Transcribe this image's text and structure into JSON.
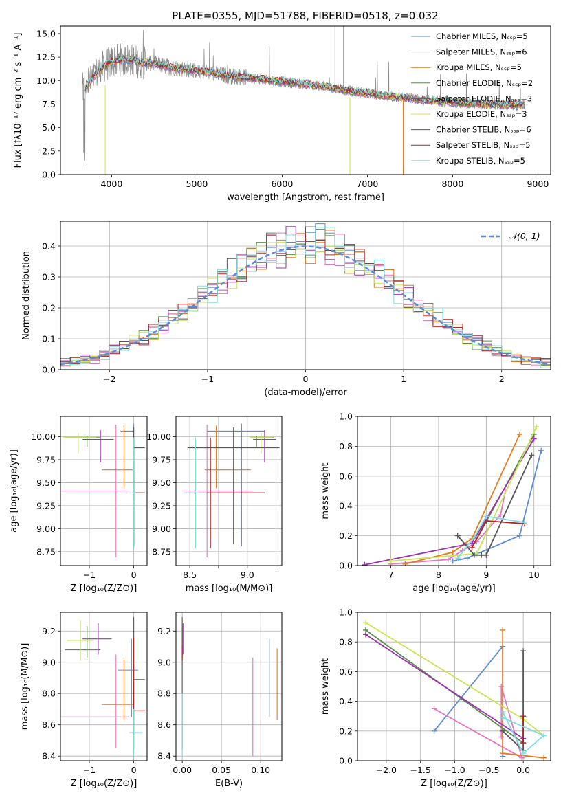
{
  "figure_title": "PLATE=0355, MJD=51788, FIBERID=0518, z=0.032",
  "colors": {
    "chabrier_miles": "#5b8bd6",
    "salpeter_miles": "#e377c2",
    "kroupa_miles": "#e6781e",
    "chabrier_elodie": "#5a8a4a",
    "salpeter_elodie": "#9b30b0",
    "kroupa_elodie": "#c8e64c",
    "chabrier_stelib": "#555555",
    "salpeter_stelib": "#b22222",
    "kroupa_stelib": "#7fdde0",
    "data_gray": "#888888",
    "normal_curve": "#5b8bd6",
    "grid": "#b0b0b0"
  },
  "chart_data": [
    {
      "id": "spectrum",
      "type": "line",
      "title": "PLATE=0355, MJD=51788, FIBERID=0518, z=0.032",
      "xlabel": "wavelength [Angstrom, rest frame]",
      "ylabel": "Flux [fλ10⁻¹⁷ erg cm⁻² s⁻¹ A⁻¹]",
      "xlim": [
        3400,
        9150
      ],
      "ylim": [
        0,
        15.8
      ],
      "xticks": [
        4000,
        5000,
        6000,
        7000,
        8000,
        9000
      ],
      "xtick_labels": [
        "4000",
        "5000",
        "6000",
        "7000",
        "8000",
        "9000"
      ],
      "yticks": [
        0.0,
        2.5,
        5.0,
        7.5,
        10.0,
        12.5,
        15.0
      ],
      "ytick_labels": [
        "0.0",
        "2.5",
        "5.0",
        "7.5",
        "10.0",
        "12.5",
        "15.0"
      ],
      "grid": false,
      "legend_position": "top-right",
      "legend": [
        "Chabrier MILES, Nₛₛₚ=5",
        "Salpeter MILES, Nₛₛₚ=6",
        "Kroupa MILES, Nₛₛₚ=5",
        "Chabrier ELODIE, Nₛₛₚ=2",
        "Salpeter ELODIE, Nₛₛₚ=3",
        "Kroupa ELODIE, Nₛₛₚ=3",
        "Chabrier STELIB, Nₛₛₚ=6",
        "Salpeter STELIB, Nₛₛₚ=5",
        "Kroupa STELIB, Nₛₛₚ=5"
      ],
      "continuum": {
        "x": [
          3650,
          3700,
          3800,
          3900,
          4000,
          4100,
          4200,
          4300,
          4500,
          4700,
          5000,
          5300,
          5600,
          6000,
          6400,
          6800,
          7200,
          7600,
          8000,
          8400,
          8800
        ],
        "y": [
          9.0,
          9.3,
          10.5,
          11.5,
          12.0,
          12.2,
          12.3,
          12.0,
          11.8,
          11.4,
          11.1,
          10.6,
          10.3,
          9.9,
          9.5,
          8.9,
          8.4,
          8.0,
          7.7,
          7.5,
          7.4
        ]
      }
    },
    {
      "id": "residuals",
      "type": "histogram",
      "xlabel": "(data-model)/error",
      "ylabel": "Normed distribution",
      "xlim": [
        -2.5,
        2.5
      ],
      "ylim": [
        0,
        0.48
      ],
      "xticks": [
        -2,
        -1,
        0,
        1,
        2
      ],
      "xtick_labels": [
        "−2",
        "−1",
        "0",
        "1",
        "2"
      ],
      "yticks": [
        0.0,
        0.1,
        0.2,
        0.3,
        0.4
      ],
      "ytick_labels": [
        "0.0",
        "0.1",
        "0.2",
        "0.3",
        "0.4"
      ],
      "grid": true,
      "legend_position": "top-right",
      "legend": [
        "𝒩(0, 1)"
      ],
      "bin_width": 0.1
    },
    {
      "id": "z_age",
      "type": "scatter",
      "xlabel": "Z [log₁₀(Z/Z⊙)]",
      "ylabel": "age  [log₁₀(age/yr)]",
      "xlim": [
        -1.65,
        0.3
      ],
      "ylim": [
        8.6,
        10.22
      ],
      "xticks": [
        -1,
        0
      ],
      "xtick_labels": [
        "−1",
        "0"
      ],
      "yticks": [
        8.75,
        9.0,
        9.25,
        9.5,
        9.75,
        10.0
      ],
      "ytick_labels": [
        "8.75",
        "9.00",
        "9.25",
        "9.50",
        "9.75",
        "10.00"
      ],
      "grid": true,
      "points": [
        {
          "c": "chabrier_miles",
          "x": 0.0,
          "xerr": [
            0.3,
            0.0
          ],
          "y": 10.06,
          "yerr": [
            1.25,
            0.08
          ]
        },
        {
          "c": "salpeter_miles",
          "x": -0.4,
          "xerr": [
            1.4,
            0.3
          ],
          "y": 9.41,
          "yerr": [
            0.72,
            0.72
          ]
        },
        {
          "c": "kroupa_miles",
          "x": -0.22,
          "xerr": [
            0.5,
            0.2
          ],
          "y": 9.64,
          "yerr": [
            0.2,
            0.48
          ]
        },
        {
          "c": "chabrier_elodie",
          "x": -1.05,
          "xerr": [
            0.5,
            0.3
          ],
          "y": 9.99,
          "yerr": [
            0.1,
            0.02
          ]
        },
        {
          "c": "salpeter_elodie",
          "x": -0.75,
          "xerr": [
            0.4,
            0.3
          ],
          "y": 9.97,
          "yerr": [
            0.25,
            0.1
          ]
        },
        {
          "c": "kroupa_elodie",
          "x": -1.25,
          "xerr": [
            0.35,
            0.4
          ],
          "y": 9.99,
          "yerr": [
            0.17,
            0.05
          ]
        },
        {
          "c": "chabrier_stelib",
          "x": 0.0,
          "xerr": [
            0.0,
            0.25
          ],
          "y": 9.88,
          "yerr": [
            1.05,
            0.22
          ]
        },
        {
          "c": "salpeter_stelib",
          "x": 0.0,
          "xerr": [
            0.0,
            0.25
          ],
          "y": 9.39,
          "yerr": [
            0.6,
            0.6
          ]
        },
        {
          "c": "kroupa_stelib",
          "x": 0.0,
          "xerr": [
            0.05,
            0.05
          ],
          "y": 9.39,
          "yerr": [
            0.6,
            0.6
          ]
        }
      ]
    },
    {
      "id": "mass_age",
      "type": "scatter",
      "xlabel": "mass [log₁₀(M/M⊙)]",
      "ylabel": "",
      "xlim": [
        8.38,
        9.3
      ],
      "ylim": [
        8.6,
        10.22
      ],
      "xticks": [
        8.5,
        8.75,
        9.0,
        9.25
      ],
      "xtick_labels": [
        "8.5",
        "",
        "9.0",
        ""
      ],
      "yticks": [
        8.75,
        9.0,
        9.25,
        9.5,
        9.75,
        10.0
      ],
      "ytick_labels": [
        "8.75",
        "9.00",
        "9.25",
        "9.50",
        "9.75",
        "10.00"
      ],
      "grid": true,
      "points": [
        {
          "c": "chabrier_miles",
          "x": 8.95,
          "xerr": [
            0.3,
            0.2
          ],
          "y": 10.06,
          "yerr": [
            1.25,
            0.08
          ]
        },
        {
          "c": "salpeter_miles",
          "x": 8.65,
          "xerr": [
            0.2,
            0.4
          ],
          "y": 9.41,
          "yerr": [
            0.72,
            0.72
          ]
        },
        {
          "c": "kroupa_miles",
          "x": 8.73,
          "xerr": [
            0.1,
            0.3
          ],
          "y": 9.64,
          "yerr": [
            0.2,
            0.48
          ]
        },
        {
          "c": "chabrier_elodie",
          "x": 9.08,
          "xerr": [
            0.05,
            0.15
          ],
          "y": 9.99,
          "yerr": [
            0.1,
            0.02
          ]
        },
        {
          "c": "salpeter_elodie",
          "x": 9.15,
          "xerr": [
            0.1,
            0.1
          ],
          "y": 9.97,
          "yerr": [
            0.25,
            0.1
          ]
        },
        {
          "c": "kroupa_elodie",
          "x": 9.12,
          "xerr": [
            0.1,
            0.1
          ],
          "y": 9.99,
          "yerr": [
            0.17,
            0.05
          ]
        },
        {
          "c": "chabrier_stelib",
          "x": 8.88,
          "xerr": [
            0.4,
            0.4
          ],
          "y": 9.88,
          "yerr": [
            1.05,
            0.22
          ]
        },
        {
          "c": "salpeter_stelib",
          "x": 8.68,
          "xerr": [
            0.1,
            0.47
          ],
          "y": 9.39,
          "yerr": [
            0.6,
            0.6
          ]
        },
        {
          "c": "kroupa_stelib",
          "x": 8.55,
          "xerr": [
            0.1,
            0.1
          ],
          "y": 9.39,
          "yerr": [
            0.6,
            0.6
          ]
        }
      ]
    },
    {
      "id": "age_weight",
      "type": "line",
      "xlabel": "age  [log₁₀(age/yr)]",
      "ylabel": "mass weight",
      "xlim": [
        6.3,
        10.35
      ],
      "ylim": [
        0.0,
        1.0
      ],
      "xticks": [
        7,
        8,
        9,
        10
      ],
      "xtick_labels": [
        "7",
        "8",
        "9",
        "10"
      ],
      "yticks": [
        0.0,
        0.2,
        0.4,
        0.6,
        0.8,
        1.0
      ],
      "ytick_labels": [
        "0.0",
        "0.2",
        "0.4",
        "0.6",
        "0.8",
        "1.0"
      ],
      "grid": true,
      "series": [
        {
          "c": "chabrier_miles",
          "x": [
            8.3,
            8.6,
            9.7,
            10.15,
            10.15
          ],
          "y": [
            0.03,
            0.05,
            0.2,
            0.77,
            0.77
          ]
        },
        {
          "c": "salpeter_miles",
          "x": [
            7.0,
            8.2,
            8.5,
            8.8,
            9.3,
            9.4
          ],
          "y": [
            0.01,
            0.04,
            0.1,
            0.16,
            0.34,
            0.5
          ]
        },
        {
          "c": "kroupa_miles",
          "x": [
            7.3,
            8.3,
            8.7,
            9.7
          ],
          "y": [
            0.01,
            0.09,
            0.18,
            0.88
          ]
        },
        {
          "c": "chabrier_elodie",
          "x": [
            8.7,
            10.0
          ],
          "y": [
            0.12,
            0.88
          ]
        },
        {
          "c": "salpeter_elodie",
          "x": [
            6.45,
            8.7,
            10.0
          ],
          "y": [
            0.005,
            0.15,
            0.85
          ]
        },
        {
          "c": "kroupa_elodie",
          "x": [
            7.0,
            8.8,
            10.05
          ],
          "y": [
            0.03,
            0.08,
            0.93
          ]
        },
        {
          "c": "chabrier_stelib",
          "x": [
            8.4,
            8.75,
            8.9,
            9.0,
            9.95
          ],
          "y": [
            0.2,
            0.07,
            0.07,
            0.07,
            0.74
          ]
        },
        {
          "c": "salpeter_stelib",
          "x": [
            8.7,
            9.0,
            9.8
          ],
          "y": [
            0.12,
            0.3,
            0.28
          ]
        },
        {
          "c": "kroupa_stelib",
          "x": [
            8.4,
            8.75,
            9.0,
            9.8
          ],
          "y": [
            0.05,
            0.19,
            0.33,
            0.29
          ]
        }
      ]
    },
    {
      "id": "z_mass",
      "type": "scatter",
      "xlabel": "Z [log₁₀(Z/Z⊙)]",
      "ylabel": "mass [log₁₀(M/M⊙)]",
      "xlim": [
        -1.65,
        0.3
      ],
      "ylim": [
        8.37,
        9.32
      ],
      "xticks": [
        -1,
        0
      ],
      "xtick_labels": [
        "−1",
        "0"
      ],
      "yticks": [
        8.4,
        8.6,
        8.8,
        9.0,
        9.2
      ],
      "ytick_labels": [
        "8.4",
        "8.6",
        "8.8",
        "9.0",
        "9.2"
      ],
      "grid": true,
      "points": [
        {
          "c": "chabrier_miles",
          "x": -0.05,
          "xerr": [
            0.3,
            0.15
          ],
          "y": 8.95,
          "yerr": [
            0.3,
            0.2
          ]
        },
        {
          "c": "salpeter_miles",
          "x": -0.4,
          "xerr": [
            1.4,
            0.3
          ],
          "y": 8.65,
          "yerr": [
            0.2,
            0.4
          ]
        },
        {
          "c": "kroupa_miles",
          "x": -0.22,
          "xerr": [
            0.5,
            0.2
          ],
          "y": 8.73,
          "yerr": [
            0.1,
            0.3
          ]
        },
        {
          "c": "chabrier_elodie",
          "x": -1.05,
          "xerr": [
            0.5,
            0.3
          ],
          "y": 9.08,
          "yerr": [
            0.05,
            0.15
          ]
        },
        {
          "c": "salpeter_elodie",
          "x": -0.8,
          "xerr": [
            0.35,
            0.3
          ],
          "y": 9.15,
          "yerr": [
            0.1,
            0.1
          ]
        },
        {
          "c": "kroupa_elodie",
          "x": -1.2,
          "xerr": [
            0.3,
            0.3
          ],
          "y": 9.14,
          "yerr": [
            0.13,
            0.13
          ]
        },
        {
          "c": "chabrier_stelib",
          "x": 0.0,
          "xerr": [
            0.0,
            0.25
          ],
          "y": 8.89,
          "yerr": [
            0.45,
            0.4
          ]
        },
        {
          "c": "salpeter_stelib",
          "x": 0.0,
          "xerr": [
            0.0,
            0.25
          ],
          "y": 8.69,
          "yerr": [
            0.1,
            0.47
          ]
        },
        {
          "c": "kroupa_stelib",
          "x": 0.0,
          "xerr": [
            0.1,
            0.2
          ],
          "y": 8.55,
          "yerr": [
            0.15,
            0.15
          ]
        }
      ]
    },
    {
      "id": "ebv_mass",
      "type": "scatter",
      "xlabel": "E(B-V)",
      "ylabel": "",
      "xlim": [
        -0.008,
        0.127
      ],
      "ylim": [
        8.37,
        9.32
      ],
      "xticks": [
        0.0,
        0.05,
        0.1
      ],
      "xtick_labels": [
        "0.00",
        "0.05",
        "0.10"
      ],
      "yticks": [
        8.4,
        8.6,
        8.8,
        9.0,
        9.2
      ],
      "ytick_labels": [
        "8.4",
        "8.6",
        "8.8",
        "9.0",
        "9.2"
      ],
      "grid": true,
      "points": [
        {
          "c": "chabrier_miles",
          "x": 0.111,
          "xerr": [
            0,
            0
          ],
          "y": 8.95,
          "yerr": [
            0.3,
            0.2
          ]
        },
        {
          "c": "salpeter_miles",
          "x": 0.09,
          "xerr": [
            0,
            0
          ],
          "y": 8.65,
          "yerr": [
            0.25,
            0.38
          ]
        },
        {
          "c": "kroupa_miles",
          "x": 0.121,
          "xerr": [
            0,
            0
          ],
          "y": 8.83,
          "yerr": [
            0.2,
            0.26
          ]
        },
        {
          "c": "chabrier_elodie",
          "x": 0.0,
          "xerr": [
            0,
            0
          ],
          "y": 9.08,
          "yerr": [
            0.05,
            0.15
          ]
        },
        {
          "c": "salpeter_elodie",
          "x": 0.001,
          "xerr": [
            0,
            0
          ],
          "y": 9.15,
          "yerr": [
            0.1,
            0.1
          ]
        },
        {
          "c": "kroupa_elodie",
          "x": 0.002,
          "xerr": [
            0,
            0
          ],
          "y": 9.14,
          "yerr": [
            0.13,
            0.13
          ]
        },
        {
          "c": "chabrier_stelib",
          "x": 0.0,
          "xerr": [
            0,
            0
          ],
          "y": 8.89,
          "yerr": [
            0.45,
            0.4
          ]
        },
        {
          "c": "salpeter_stelib",
          "x": 0.0,
          "xerr": [
            0,
            0
          ],
          "y": 9.06,
          "yerr": [
            0.05,
            0.05
          ]
        },
        {
          "c": "kroupa_stelib",
          "x": 0.0,
          "xerr": [
            0,
            0
          ],
          "y": 8.6,
          "yerr": [
            0.2,
            0.2
          ]
        }
      ]
    },
    {
      "id": "z_weight",
      "type": "line",
      "xlabel": "Z [log₁₀(Z/Z⊙)]",
      "ylabel": "mass weight",
      "xlim": [
        -2.42,
        0.4
      ],
      "ylim": [
        0.0,
        1.0
      ],
      "xticks": [
        -2.0,
        -1.5,
        -1.0,
        -0.5,
        0.0
      ],
      "xtick_labels": [
        "−2.0",
        "−1.5",
        "−1.0",
        "−0.5",
        "0.0"
      ],
      "yticks": [
        0.0,
        0.2,
        0.4,
        0.6,
        0.8,
        1.0
      ],
      "ytick_labels": [
        "0.0",
        "0.2",
        "0.4",
        "0.6",
        "0.8",
        "1.0"
      ],
      "grid": true,
      "series": [
        {
          "c": "chabrier_miles",
          "x": [
            -1.3,
            -0.3,
            -0.3
          ],
          "y": [
            0.2,
            0.77,
            0.03
          ]
        },
        {
          "c": "salpeter_miles",
          "x": [
            -1.3,
            -0.02,
            -0.32,
            -0.32
          ],
          "y": [
            0.35,
            0.02,
            0.5,
            0.16
          ]
        },
        {
          "c": "kroupa_miles",
          "x": [
            -0.3,
            -0.3,
            0.3
          ],
          "y": [
            0.88,
            0.05,
            0.02
          ]
        },
        {
          "c": "chabrier_elodie",
          "x": [
            -2.3,
            0.0
          ],
          "y": [
            0.88,
            0.12
          ]
        },
        {
          "c": "salpeter_elodie",
          "x": [
            -2.3,
            0.0
          ],
          "y": [
            0.85,
            0.15
          ]
        },
        {
          "c": "kroupa_elodie",
          "x": [
            -2.3,
            0.0,
            0.3
          ],
          "y": [
            0.93,
            0.28,
            0.17
          ]
        },
        {
          "c": "chabrier_stelib",
          "x": [
            0.0,
            0.0,
            -0.3
          ],
          "y": [
            0.74,
            0.07,
            0.2
          ]
        },
        {
          "c": "salpeter_stelib",
          "x": [
            0.0,
            0.0
          ],
          "y": [
            0.3,
            0.12
          ]
        },
        {
          "c": "kroupa_stelib",
          "x": [
            -0.3,
            0.0,
            0.3,
            -0.3
          ],
          "y": [
            0.33,
            0.05,
            0.17,
            0.29
          ]
        }
      ]
    }
  ]
}
